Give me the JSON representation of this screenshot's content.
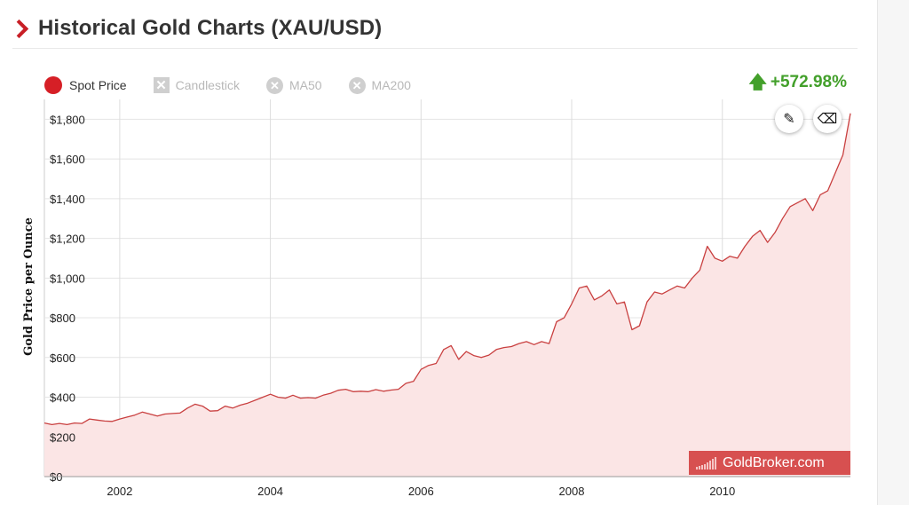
{
  "header": {
    "title": "Historical Gold Charts (XAU/USD)"
  },
  "legend": [
    {
      "label": "Spot Price",
      "icon": "dot",
      "active": true
    },
    {
      "label": "Candlestick",
      "icon": "xbox",
      "active": false
    },
    {
      "label": "MA50",
      "icon": "xcircle",
      "active": false
    },
    {
      "label": "MA200",
      "icon": "xcircle",
      "active": false
    }
  ],
  "change": {
    "arrow": "up-arrow-icon",
    "value": "+572.98%",
    "color": "#43a02b"
  },
  "tools": [
    {
      "name": "pencil-icon",
      "glyph": "✎"
    },
    {
      "name": "eraser-icon",
      "glyph": "⌫"
    }
  ],
  "watermark": "GoldBroker.com",
  "colors": {
    "accent": "#c81f26",
    "line": "#c94040",
    "fill": "#fbe5e5"
  },
  "chart_data": {
    "type": "area",
    "title": "",
    "xlabel": "",
    "ylabel": "Gold Price per Ounce",
    "xlim": [
      2001.0,
      2011.7
    ],
    "ylim": [
      0,
      1900
    ],
    "yticks": [
      {
        "value": 0,
        "label": "$0"
      },
      {
        "value": 200,
        "label": "$200"
      },
      {
        "value": 400,
        "label": "$400"
      },
      {
        "value": 600,
        "label": "$600"
      },
      {
        "value": 800,
        "label": "$800"
      },
      {
        "value": 1000,
        "label": "$1,000"
      },
      {
        "value": 1200,
        "label": "$1,200"
      },
      {
        "value": 1400,
        "label": "$1,400"
      },
      {
        "value": 1600,
        "label": "$1,600"
      },
      {
        "value": 1800,
        "label": "$1,800"
      }
    ],
    "xticks": [
      {
        "value": 2002,
        "label": "2002"
      },
      {
        "value": 2004,
        "label": "2004"
      },
      {
        "value": 2006,
        "label": "2006"
      },
      {
        "value": 2008,
        "label": "2008"
      },
      {
        "value": 2010,
        "label": "2010"
      }
    ],
    "grid": true,
    "series": [
      {
        "name": "Spot Price",
        "x": [
          2001.0,
          2001.1,
          2001.2,
          2001.3,
          2001.4,
          2001.5,
          2001.6,
          2001.7,
          2001.8,
          2001.9,
          2002.0,
          2002.1,
          2002.2,
          2002.3,
          2002.4,
          2002.5,
          2002.6,
          2002.7,
          2002.8,
          2002.9,
          2003.0,
          2003.1,
          2003.2,
          2003.3,
          2003.4,
          2003.5,
          2003.6,
          2003.7,
          2003.8,
          2003.9,
          2004.0,
          2004.1,
          2004.2,
          2004.3,
          2004.4,
          2004.5,
          2004.6,
          2004.7,
          2004.8,
          2004.9,
          2005.0,
          2005.1,
          2005.2,
          2005.3,
          2005.4,
          2005.5,
          2005.6,
          2005.7,
          2005.8,
          2005.9,
          2006.0,
          2006.1,
          2006.2,
          2006.3,
          2006.4,
          2006.5,
          2006.6,
          2006.7,
          2006.8,
          2006.9,
          2007.0,
          2007.1,
          2007.2,
          2007.3,
          2007.4,
          2007.5,
          2007.6,
          2007.7,
          2007.8,
          2007.9,
          2008.0,
          2008.1,
          2008.2,
          2008.3,
          2008.4,
          2008.5,
          2008.6,
          2008.7,
          2008.8,
          2008.9,
          2009.0,
          2009.1,
          2009.2,
          2009.3,
          2009.4,
          2009.5,
          2009.6,
          2009.7,
          2009.8,
          2009.9,
          2010.0,
          2010.1,
          2010.2,
          2010.3,
          2010.4,
          2010.5,
          2010.6,
          2010.7,
          2010.8,
          2010.9,
          2011.0,
          2011.1,
          2011.2,
          2011.3,
          2011.4,
          2011.5,
          2011.6,
          2011.7
        ],
        "values": [
          270,
          262,
          268,
          262,
          270,
          268,
          290,
          285,
          280,
          278,
          290,
          300,
          310,
          325,
          315,
          305,
          315,
          318,
          320,
          345,
          365,
          355,
          330,
          332,
          355,
          345,
          360,
          370,
          385,
          400,
          415,
          400,
          395,
          410,
          395,
          398,
          395,
          410,
          420,
          435,
          440,
          428,
          430,
          428,
          438,
          430,
          436,
          440,
          470,
          480,
          540,
          560,
          570,
          640,
          660,
          590,
          630,
          610,
          600,
          612,
          640,
          650,
          655,
          670,
          680,
          665,
          680,
          670,
          780,
          800,
          870,
          950,
          960,
          890,
          910,
          940,
          870,
          880,
          740,
          760,
          880,
          930,
          920,
          940,
          960,
          950,
          1000,
          1040,
          1160,
          1100,
          1085,
          1110,
          1100,
          1160,
          1210,
          1240,
          1180,
          1230,
          1300,
          1360,
          1380,
          1400,
          1340,
          1420,
          1440,
          1530,
          1620,
          1830
        ]
      }
    ]
  }
}
